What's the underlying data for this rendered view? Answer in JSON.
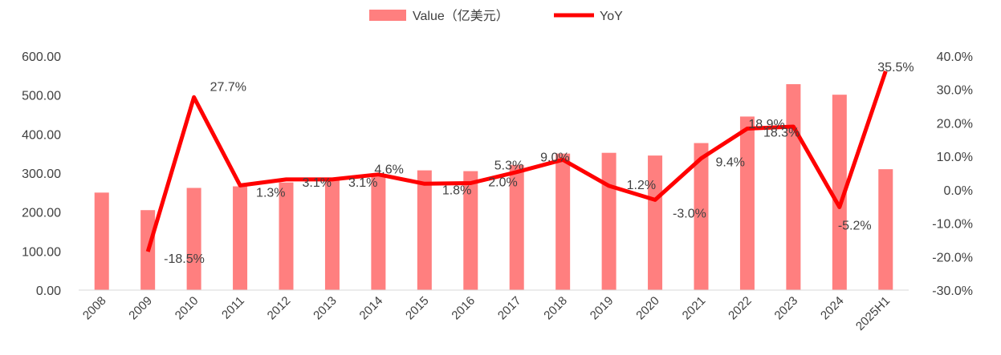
{
  "chart_data": {
    "type": "bar",
    "categories": [
      "2008",
      "2009",
      "2010",
      "2011",
      "2012",
      "2013",
      "2014",
      "2015",
      "2016",
      "2017",
      "2018",
      "2019",
      "2020",
      "2021",
      "2022",
      "2023",
      "2024",
      "2025H1"
    ],
    "series": [
      {
        "name": "Value（亿美元）",
        "type": "bar",
        "axis": "left",
        "color": "#ff7f7f",
        "values": [
          250,
          205,
          262,
          266,
          276,
          286,
          295,
          307,
          305,
          321,
          350,
          352,
          345,
          377,
          445,
          528,
          501,
          310
        ]
      },
      {
        "name": "YoY",
        "type": "line",
        "axis": "right",
        "color": "#ff0000",
        "values": [
          null,
          -18.5,
          27.7,
          1.3,
          3.1,
          3.1,
          4.6,
          1.8,
          2.0,
          5.3,
          9.0,
          1.2,
          -3.0,
          9.4,
          18.3,
          18.9,
          -5.2,
          35.5
        ],
        "labels": [
          "",
          "-18.5%",
          "27.7%",
          "1.3%",
          "3.1%",
          "3.1%",
          "4.6%",
          "1.8%",
          "2.0%",
          "5.3%",
          "9.0%",
          "1.2%",
          "-3.0%",
          "9.4%",
          "18.3%",
          "18.9%",
          "-5.2%",
          "35.5%"
        ]
      }
    ],
    "y_left": {
      "min": 0,
      "max": 600,
      "ticks": [
        "0.00",
        "100.00",
        "200.00",
        "300.00",
        "400.00",
        "500.00",
        "600.00"
      ]
    },
    "y_right": {
      "min": -30,
      "max": 40,
      "ticks": [
        "-30.0%",
        "-20.0%",
        "-10.0%",
        "0.0%",
        "10.0%",
        "20.0%",
        "30.0%",
        "40.0%"
      ]
    },
    "grid": false,
    "legend": "top-center"
  }
}
